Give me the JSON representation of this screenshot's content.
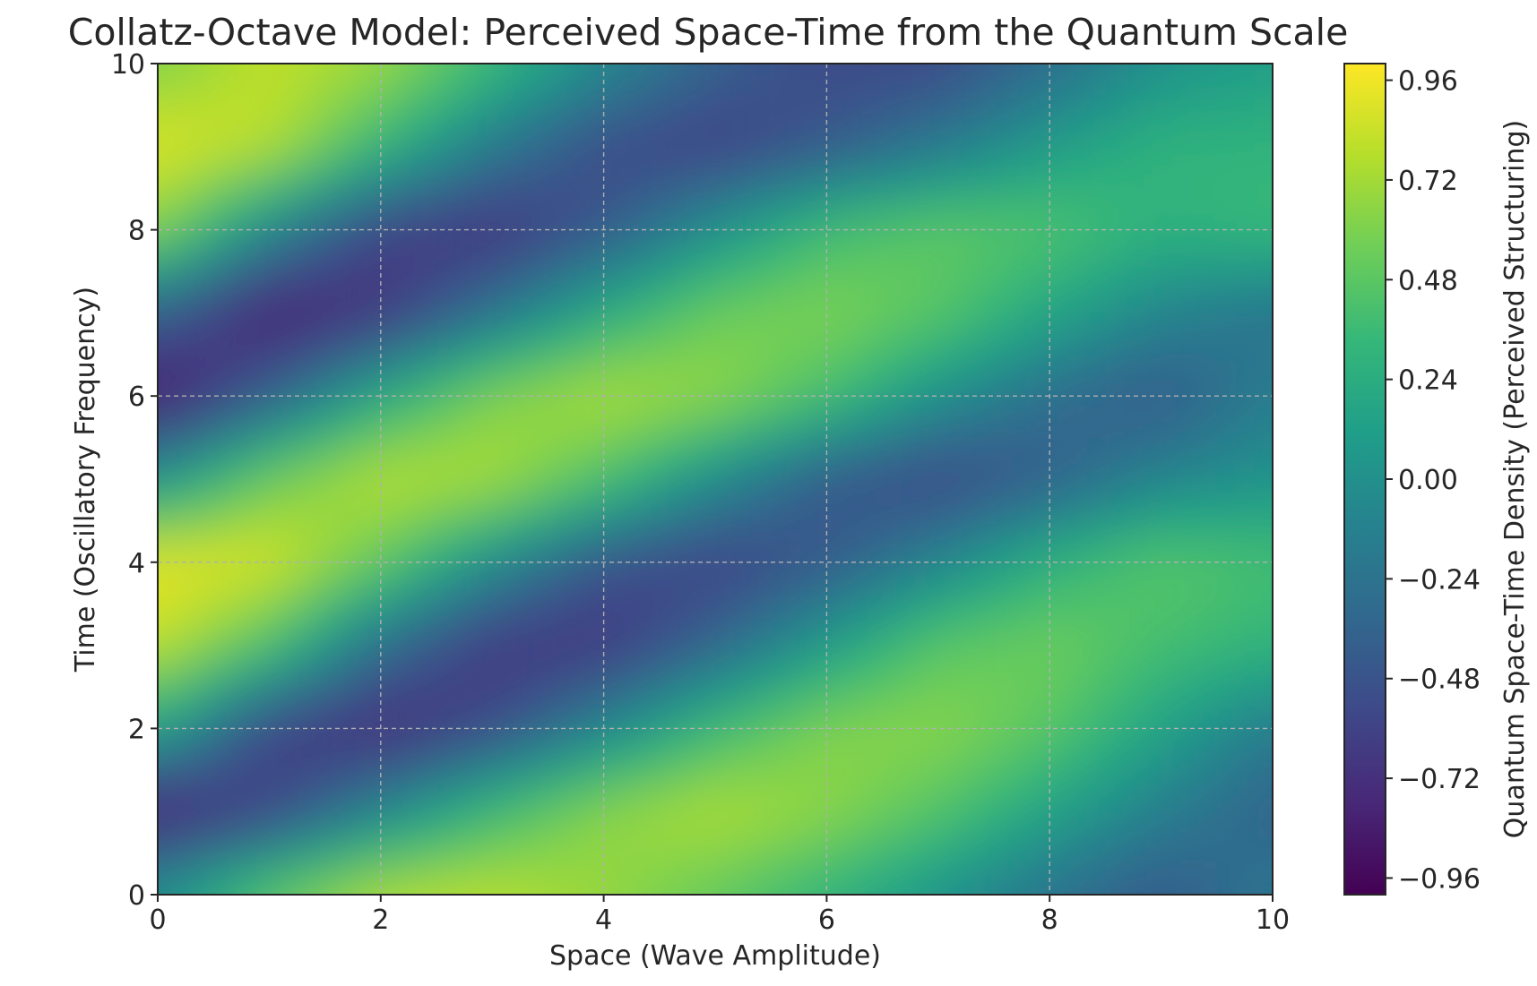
{
  "chart_data": {
    "type": "heatmap",
    "title": "Collatz-Octave Model: Perceived Space-Time from the Quantum Scale",
    "xlabel": "Space (Wave Amplitude)",
    "ylabel": "Time (Oscillatory Frequency)",
    "xlim": [
      0,
      10
    ],
    "ylim": [
      0,
      10
    ],
    "x_ticks": [
      "0",
      "2",
      "4",
      "6",
      "8",
      "10"
    ],
    "y_ticks": [
      "0",
      "2",
      "4",
      "6",
      "8",
      "10"
    ],
    "grid": true,
    "colormap": "viridis",
    "colorbar": {
      "label": "Quantum Space-Time Density (Perceived Structuring)",
      "range": [
        -1.0,
        1.0
      ],
      "ticks": [
        "0.96",
        "0.72",
        "0.48",
        "0.24",
        "0.00",
        "−0.24",
        "−0.48",
        "−0.72",
        "−0.96"
      ]
    },
    "x": [
      0,
      1,
      2,
      3,
      4,
      5,
      6,
      7,
      8,
      9,
      10
    ],
    "y": [
      0,
      1,
      2,
      3,
      4,
      5,
      6,
      7,
      8,
      9,
      10
    ],
    "z": [
      [
        0.0,
        0.5,
        0.78,
        0.8,
        0.68,
        0.5,
        0.28,
        0.02,
        -0.26,
        -0.45,
        -0.2
      ],
      [
        -0.85,
        -0.6,
        -0.1,
        0.35,
        0.66,
        0.78,
        0.66,
        0.45,
        0.15,
        -0.15,
        -0.38
      ],
      [
        0.15,
        -0.6,
        -0.78,
        -0.55,
        -0.1,
        0.35,
        0.62,
        0.65,
        0.48,
        0.15,
        -0.18
      ],
      [
        0.82,
        0.4,
        -0.3,
        -0.68,
        -0.68,
        -0.35,
        0.1,
        0.48,
        0.56,
        0.4,
        0.3
      ],
      [
        0.95,
        0.9,
        0.5,
        -0.05,
        -0.5,
        -0.62,
        -0.45,
        -0.1,
        0.28,
        0.48,
        0.4
      ],
      [
        0.0,
        0.55,
        0.82,
        0.76,
        0.42,
        -0.05,
        -0.45,
        -0.58,
        -0.4,
        -0.1,
        0.02
      ],
      [
        -0.9,
        -0.4,
        0.2,
        0.62,
        0.78,
        0.68,
        0.4,
        0.0,
        -0.3,
        -0.45,
        -0.15
      ],
      [
        -0.4,
        -0.86,
        -0.7,
        -0.25,
        0.22,
        0.55,
        0.62,
        0.48,
        0.18,
        -0.1,
        -0.25
      ],
      [
        0.62,
        -0.1,
        -0.62,
        -0.72,
        -0.45,
        0.0,
        0.38,
        0.5,
        0.45,
        0.28,
        0.35
      ],
      [
        0.92,
        0.8,
        0.3,
        -0.2,
        -0.55,
        -0.62,
        -0.45,
        -0.2,
        0.1,
        0.3,
        0.3
      ],
      [
        0.6,
        0.82,
        0.7,
        0.35,
        -0.05,
        -0.38,
        -0.55,
        -0.55,
        -0.3,
        0.0,
        0.12
      ]
    ]
  },
  "colors": {
    "text": "#262626",
    "grid": "#b0b0b0",
    "viridis": [
      "#440154",
      "#482878",
      "#3e4989",
      "#31688e",
      "#26828e",
      "#1f9e89",
      "#35b779",
      "#6ece58",
      "#b5de2b",
      "#fde725"
    ]
  }
}
